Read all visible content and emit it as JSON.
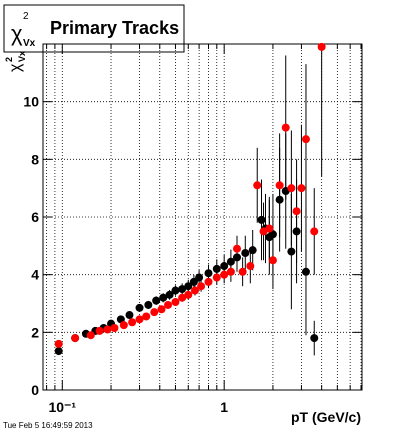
{
  "chart_data": {
    "type": "scatter",
    "title": "Primary Tracks",
    "title_symbol": "χ",
    "title_sup": "2",
    "title_sub": "Vx",
    "ylabel_symbol": "χ",
    "ylabel_sup": "2",
    "ylabel_sub": "Vx",
    "xlabel": "pT (GeV/c)",
    "footer": "Tue Feb  5 16:49:59 2013",
    "xlog": true,
    "grid": true,
    "xlim": [
      0.076,
      7.1
    ],
    "ylim": [
      0,
      12
    ],
    "xticks": [
      {
        "value": 0.1,
        "label": "10⁻¹"
      },
      {
        "value": 1,
        "label": "1"
      }
    ],
    "xminorticks": [
      0.08,
      0.09,
      0.2,
      0.3,
      0.4,
      0.5,
      0.6,
      0.7,
      0.8,
      0.9,
      2,
      3,
      4,
      5,
      6,
      7
    ],
    "yticks": [
      0,
      2,
      4,
      6,
      8,
      10
    ],
    "series": [
      {
        "color": "#000000",
        "x": [
          0.095,
          0.12,
          0.14,
          0.16,
          0.18,
          0.2,
          0.23,
          0.26,
          0.3,
          0.34,
          0.38,
          0.42,
          0.46,
          0.5,
          0.55,
          0.6,
          0.65,
          0.7,
          0.8,
          0.9,
          1.0,
          1.1,
          1.2,
          1.35,
          1.5,
          1.7,
          1.8,
          1.9,
          2.0,
          2.2,
          2.4,
          2.6,
          2.8,
          3.2,
          3.6
        ],
        "values": [
          1.35,
          1.8,
          1.95,
          2.05,
          2.15,
          2.3,
          2.45,
          2.6,
          2.85,
          2.95,
          3.1,
          3.2,
          3.3,
          3.45,
          3.5,
          3.6,
          3.75,
          3.9,
          4.05,
          4.2,
          4.3,
          4.45,
          4.6,
          4.75,
          4.85,
          5.9,
          5.6,
          5.3,
          5.4,
          6.6,
          6.9,
          4.8,
          5.5,
          4.1,
          1.8
        ],
        "errors": [
          0.1,
          0.08,
          0.08,
          0.08,
          0.08,
          0.1,
          0.1,
          0.12,
          0.12,
          0.14,
          0.15,
          0.16,
          0.17,
          0.18,
          0.2,
          0.22,
          0.24,
          0.26,
          0.3,
          0.33,
          0.38,
          0.42,
          0.5,
          0.6,
          0.7,
          1.4,
          1.2,
          1.3,
          1.4,
          1.8,
          2.0,
          2.0,
          1.8,
          2.2,
          0.6
        ]
      },
      {
        "color": "#ff0000",
        "x": [
          0.095,
          0.12,
          0.15,
          0.17,
          0.19,
          0.21,
          0.24,
          0.27,
          0.3,
          0.33,
          0.37,
          0.41,
          0.45,
          0.5,
          0.55,
          0.6,
          0.66,
          0.72,
          0.8,
          0.9,
          1.0,
          1.1,
          1.2,
          1.3,
          1.45,
          1.6,
          1.75,
          1.9,
          2.0,
          2.2,
          2.4,
          2.6,
          2.8,
          3.0,
          3.2,
          3.6,
          4.0
        ],
        "values": [
          1.6,
          1.8,
          1.9,
          2.05,
          2.1,
          2.15,
          2.25,
          2.35,
          2.45,
          2.55,
          2.7,
          2.8,
          2.95,
          3.05,
          3.2,
          3.3,
          3.45,
          3.6,
          3.75,
          3.9,
          4.0,
          4.1,
          4.9,
          4.1,
          4.3,
          7.1,
          5.5,
          5.6,
          4.5,
          7.1,
          9.1,
          7.0,
          6.2,
          7.0,
          8.7,
          5.5,
          11.9
        ],
        "errors": [
          0.08,
          0.06,
          0.06,
          0.06,
          0.06,
          0.07,
          0.08,
          0.08,
          0.09,
          0.1,
          0.1,
          0.11,
          0.12,
          0.13,
          0.14,
          0.15,
          0.17,
          0.19,
          0.22,
          0.25,
          0.3,
          0.35,
          0.45,
          0.5,
          0.6,
          1.3,
          1.0,
          1.1,
          1.0,
          1.8,
          2.5,
          2.0,
          1.8,
          2.2,
          2.6,
          1.5,
          4.5
        ]
      }
    ]
  }
}
